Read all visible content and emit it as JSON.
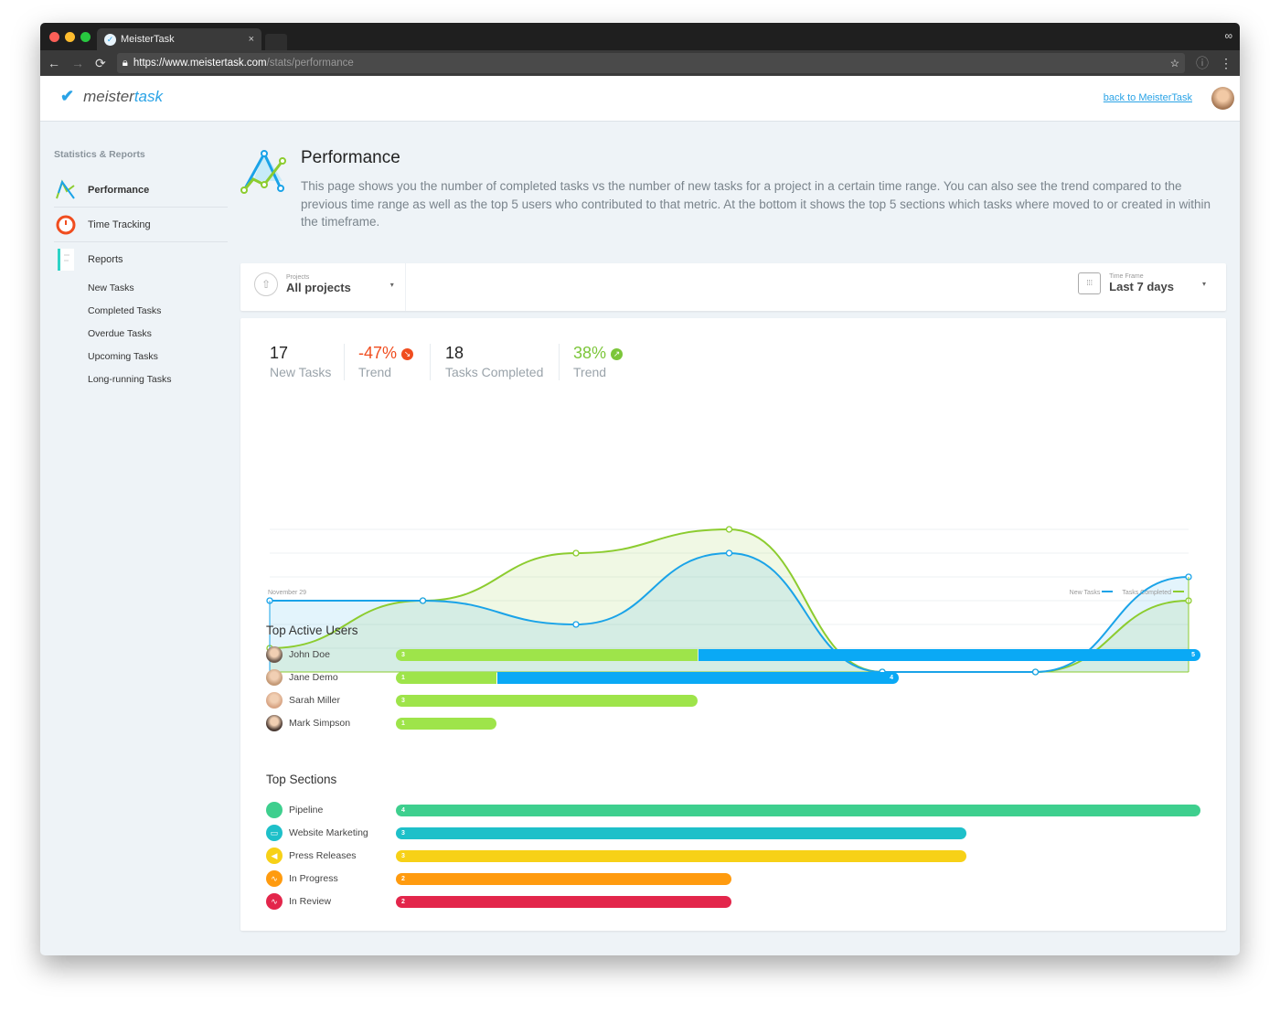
{
  "browser": {
    "tab_title": "MeisterTask",
    "url_host": "https://www.meistertask.com",
    "url_path": "/stats/performance"
  },
  "header": {
    "logo_a": "meister",
    "logo_b": "task",
    "back_link": "back to MeisterTask"
  },
  "sidebar": {
    "heading": "Statistics & Reports",
    "items": [
      {
        "label": "Performance"
      },
      {
        "label": "Time Tracking"
      },
      {
        "label": "Reports"
      }
    ],
    "subitems": [
      "New Tasks",
      "Completed Tasks",
      "Overdue Tasks",
      "Upcoming Tasks",
      "Long-running Tasks"
    ]
  },
  "page": {
    "title": "Performance",
    "description": "This page shows you the number of completed tasks vs the number of new tasks for a project in a certain time range. You can also see the trend compared to the previous time range as well as the top 5 users who contributed to that metric. At the bottom it shows the top 5 sections which tasks where moved to or created in within the timeframe."
  },
  "filters": {
    "projects_label": "Projects",
    "projects_value": "All projects",
    "timeframe_label": "Time Frame",
    "timeframe_value": "Last 7 days"
  },
  "stats": {
    "new_tasks": "17",
    "new_tasks_label": "New Tasks",
    "new_trend": "-47%",
    "new_trend_label": "Trend",
    "completed": "18",
    "completed_label": "Tasks Completed",
    "completed_trend": "38%",
    "completed_trend_label": "Trend"
  },
  "colors": {
    "new_tasks": "#1aa3e8",
    "tasks_completed": "#8ccc2f",
    "trend_down": "#f04d1f",
    "trend_up": "#7cc63a"
  },
  "chart_data": {
    "type": "area",
    "x_start_label": "November 29",
    "points": 7,
    "ylim": [
      0,
      6
    ],
    "series": [
      {
        "name": "New Tasks",
        "values": [
          3,
          3,
          2,
          5,
          0,
          0,
          4
        ]
      },
      {
        "name": "Tasks Completed",
        "values": [
          1,
          3,
          5,
          6,
          0,
          0,
          3
        ]
      }
    ],
    "grid": true,
    "legend": "bottom-right"
  },
  "top_users": {
    "title": "Top Active Users",
    "rows": [
      {
        "name": "John Doe",
        "completed": 3,
        "new": 5
      },
      {
        "name": "Jane Demo",
        "completed": 1,
        "new": 4
      },
      {
        "name": "Sarah Miller",
        "completed": 3,
        "new": 0
      },
      {
        "name": "Mark Simpson",
        "completed": 1,
        "new": 0
      }
    ]
  },
  "top_sections": {
    "title": "Top Sections",
    "rows": [
      {
        "name": "Pipeline",
        "value": 4,
        "color": "#3ecf8e",
        "icon": "circle-icon"
      },
      {
        "name": "Website Marketing",
        "value": 3,
        "color": "#1ec0c9",
        "icon": "laptop-icon"
      },
      {
        "name": "Press Releases",
        "value": 3,
        "color": "#f7d117",
        "icon": "megaphone-icon"
      },
      {
        "name": "In Progress",
        "value": 2,
        "color": "#ff9b0f",
        "icon": "pulse-icon"
      },
      {
        "name": "In Review",
        "value": 2,
        "color": "#e3264b",
        "icon": "pulse-icon"
      }
    ]
  }
}
